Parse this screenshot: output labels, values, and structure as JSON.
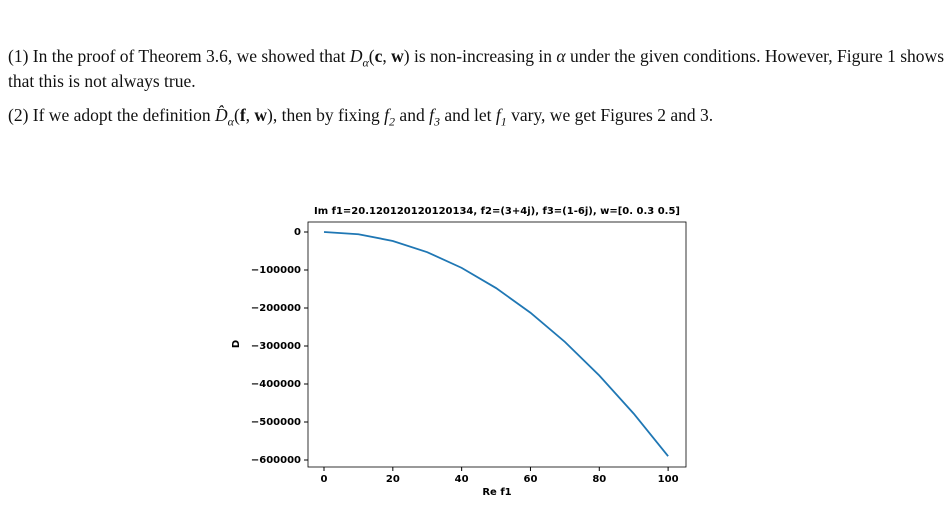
{
  "paragraphs": [
    {
      "runs": [
        "(1) In the proof of Theorem 3.6, we showed that ",
        {
          "i": "D"
        },
        {
          "sub": "α"
        },
        "(",
        {
          "b": "c"
        },
        ", ",
        {
          "b": "w"
        },
        ") is non-increasing in ",
        {
          "i": "α"
        },
        " under the given conditions. However, Figure 1 shows that this is not always true."
      ]
    },
    {
      "runs": [
        "(2) If we adopt the definition ",
        {
          "i": "D̂"
        },
        {
          "sub": "α"
        },
        "(",
        {
          "b": "f"
        },
        ", ",
        {
          "b": "w"
        },
        "), then by fixing ",
        {
          "i": "f"
        },
        {
          "sub": "2"
        },
        " and ",
        {
          "i": "f"
        },
        {
          "sub": "3"
        },
        " and let ",
        {
          "i": "f"
        },
        {
          "sub": "1"
        },
        " vary, we get Figures 2 and 3."
      ]
    }
  ],
  "chart_data": {
    "type": "line",
    "title": "Im f1=20.120120120120134, f2=(3+4j), f3=(1-6j), w=[0.  0.3 0.5]",
    "x_label": "Re f1",
    "y_label": "D",
    "x": [
      0,
      10,
      20,
      30,
      40,
      50,
      60,
      70,
      80,
      90,
      100
    ],
    "values": [
      0,
      -5900,
      -23600,
      -53100,
      -94400,
      -147500,
      -212400,
      -289100,
      -377600,
      -477900,
      -590000
    ],
    "color": "#1f77b4",
    "xlim": [
      -4.65,
      105.2
    ],
    "ylim": [
      -618400,
      26300
    ],
    "xticks": [
      0,
      20,
      40,
      60,
      80,
      100
    ],
    "yticks": [
      0,
      {
        "value": -100000,
        "label": "−100000"
      },
      {
        "value": -200000,
        "label": "−200000"
      },
      {
        "value": -300000,
        "label": "−300000"
      },
      {
        "value": -400000,
        "label": "−400000"
      },
      {
        "value": -500000,
        "label": "−500000"
      },
      {
        "value": -600000,
        "label": "−600000"
      }
    ]
  }
}
